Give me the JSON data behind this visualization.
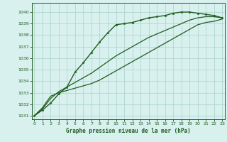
{
  "xlabel": "Graphe pression niveau de la mer (hPa)",
  "xlim": [
    -0.3,
    23.3
  ],
  "ylim": [
    1030.7,
    1040.8
  ],
  "yticks": [
    1031,
    1032,
    1033,
    1034,
    1035,
    1036,
    1037,
    1038,
    1039,
    1040
  ],
  "xticks": [
    0,
    1,
    2,
    3,
    4,
    5,
    6,
    7,
    8,
    9,
    10,
    11,
    12,
    13,
    14,
    15,
    16,
    17,
    18,
    19,
    20,
    21,
    22,
    23
  ],
  "background_color": "#d8f0ee",
  "grid_color": "#b0d8d0",
  "line_color": "#1e5c1e",
  "series": [
    {
      "x": [
        0,
        1,
        2,
        3,
        4,
        5,
        6,
        7,
        8,
        9,
        10,
        11,
        12,
        13,
        14,
        15,
        16,
        17,
        18,
        19,
        20,
        21,
        22,
        23
      ],
      "y": [
        1031.0,
        1031.5,
        1032.1,
        1032.9,
        1033.5,
        1034.8,
        1035.6,
        1036.5,
        1037.4,
        1038.2,
        1038.9,
        1039.0,
        1039.1,
        1039.3,
        1039.5,
        1039.6,
        1039.7,
        1039.9,
        1040.0,
        1040.0,
        1039.9,
        1039.8,
        1039.7,
        1039.5
      ],
      "has_marker": true,
      "markersize": 2.5,
      "linewidth": 1.0,
      "linestyle": "-"
    },
    {
      "x": [
        0,
        1,
        2,
        3,
        4,
        5,
        6,
        7,
        8,
        9,
        10,
        11,
        12,
        13,
        14,
        15,
        16,
        17,
        18,
        19,
        20,
        21,
        22,
        23
      ],
      "y": [
        1031.0,
        1031.6,
        1032.5,
        1033.1,
        1033.5,
        1033.9,
        1034.3,
        1034.7,
        1035.2,
        1035.7,
        1036.2,
        1036.6,
        1037.0,
        1037.4,
        1037.8,
        1038.1,
        1038.4,
        1038.7,
        1039.0,
        1039.3,
        1039.5,
        1039.6,
        1039.6,
        1039.5
      ],
      "has_marker": false,
      "markersize": 0,
      "linewidth": 0.9,
      "linestyle": "-"
    },
    {
      "x": [
        0,
        1,
        2,
        3,
        4,
        5,
        6,
        7,
        8,
        9,
        10,
        11,
        12,
        13,
        14,
        15,
        16,
        17,
        18,
        19,
        20,
        21,
        22,
        23
      ],
      "y": [
        1031.0,
        1031.7,
        1032.7,
        1033.0,
        1033.2,
        1033.4,
        1033.6,
        1033.8,
        1034.1,
        1034.5,
        1034.9,
        1035.3,
        1035.7,
        1036.1,
        1036.5,
        1036.9,
        1037.3,
        1037.7,
        1038.1,
        1038.5,
        1038.9,
        1039.1,
        1039.2,
        1039.4
      ],
      "has_marker": false,
      "markersize": 0,
      "linewidth": 0.9,
      "linestyle": "-"
    }
  ]
}
